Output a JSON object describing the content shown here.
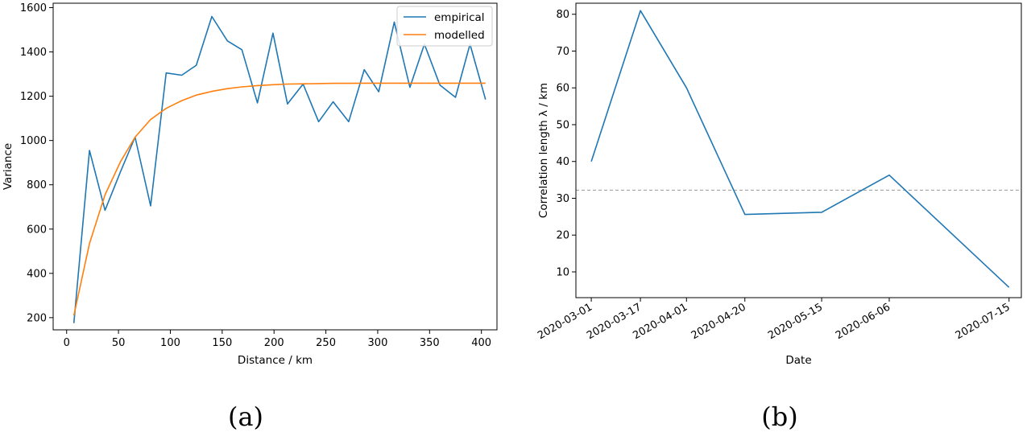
{
  "chart_data": [
    {
      "type": "line",
      "panel_label": "(a)",
      "xlabel": "Distance / km",
      "ylabel": "Variance",
      "xlim": [
        -13,
        415
      ],
      "ylim": [
        145,
        1620
      ],
      "xticks": [
        0,
        50,
        100,
        150,
        200,
        250,
        300,
        350,
        400
      ],
      "yticks": [
        200,
        400,
        600,
        800,
        1000,
        1200,
        1400,
        1600
      ],
      "legend_position": "top-right",
      "grid": false,
      "series": [
        {
          "name": "empirical",
          "color": "#1f77b4",
          "x": [
            7,
            22,
            37,
            52,
            66,
            81,
            96,
            111,
            125,
            140,
            155,
            169,
            184,
            199,
            213,
            228,
            243,
            257,
            272,
            287,
            301,
            316,
            331,
            345,
            360,
            375,
            389,
            404
          ],
          "y": [
            175,
            955,
            685,
            860,
            1015,
            705,
            1305,
            1295,
            1340,
            1560,
            1450,
            1410,
            1170,
            1485,
            1165,
            1255,
            1085,
            1175,
            1085,
            1320,
            1220,
            1535,
            1240,
            1435,
            1250,
            1195,
            1435,
            1185
          ]
        },
        {
          "name": "modelled",
          "color": "#ff7f0e",
          "x": [
            7,
            22,
            37,
            52,
            66,
            81,
            96,
            111,
            125,
            140,
            155,
            169,
            184,
            199,
            213,
            228,
            243,
            257,
            272,
            287,
            301,
            316,
            331,
            345,
            360,
            375,
            389,
            404
          ],
          "y": [
            210,
            535,
            755,
            905,
            1015,
            1095,
            1145,
            1180,
            1205,
            1222,
            1234,
            1242,
            1248,
            1252,
            1255,
            1256,
            1257,
            1258,
            1258,
            1259,
            1259,
            1259,
            1259,
            1259,
            1259,
            1259,
            1259,
            1259
          ]
        }
      ]
    },
    {
      "type": "line",
      "panel_label": "(b)",
      "xlabel": "Date",
      "ylabel": "Correlation length λ / km",
      "xlim": [
        "2020-02-25",
        "2020-07-19"
      ],
      "ylim": [
        3,
        83
      ],
      "xticks": [
        "2020-03-01",
        "2020-03-17",
        "2020-04-01",
        "2020-04-20",
        "2020-05-15",
        "2020-06-06",
        "2020-07-15"
      ],
      "yticks": [
        10,
        20,
        30,
        40,
        50,
        60,
        70,
        80
      ],
      "grid": false,
      "reference_line": {
        "y": 32.2,
        "style": "dashed",
        "color": "#999999"
      },
      "series": [
        {
          "color": "#1f77b4",
          "x": [
            "2020-03-01",
            "2020-03-17",
            "2020-04-01",
            "2020-04-20",
            "2020-05-15",
            "2020-06-06",
            "2020-07-15"
          ],
          "y": [
            40.0,
            81.0,
            60.0,
            25.6,
            26.2,
            36.3,
            5.8
          ]
        }
      ]
    }
  ]
}
